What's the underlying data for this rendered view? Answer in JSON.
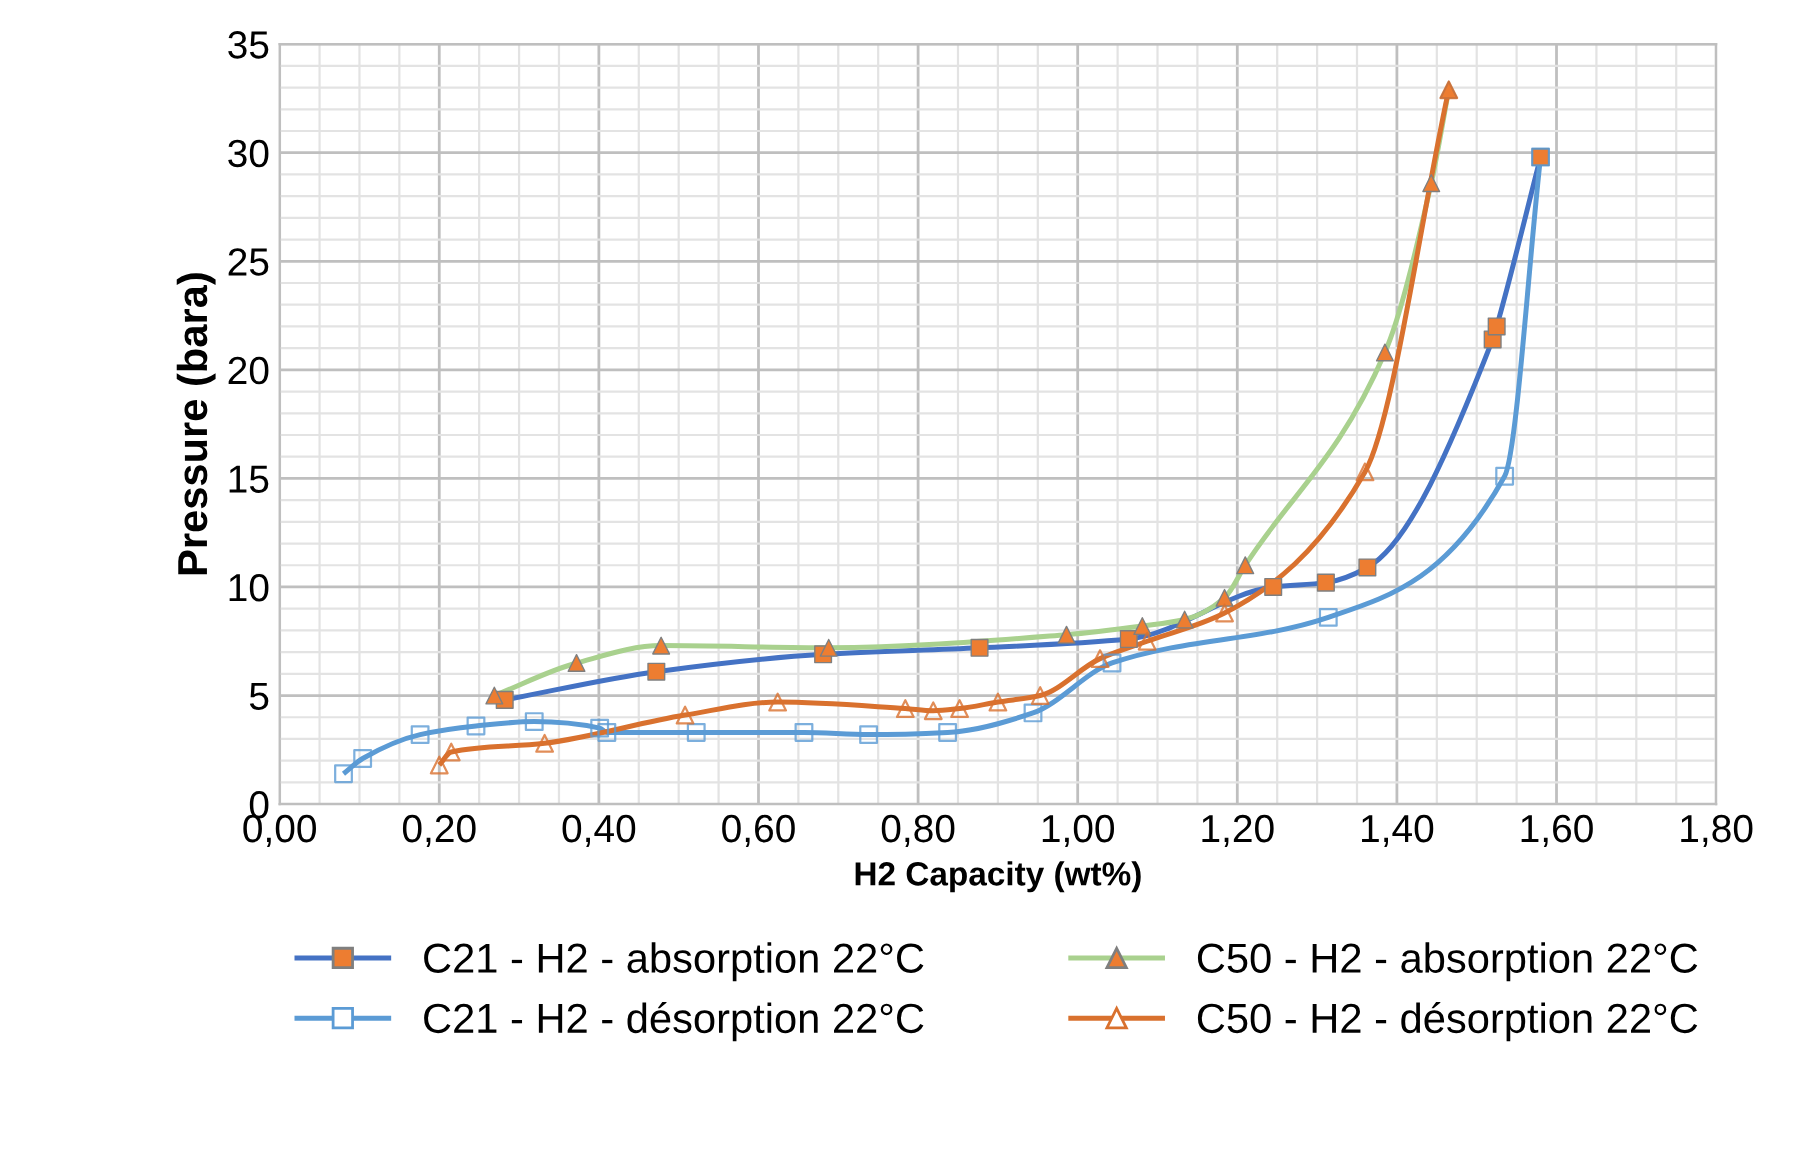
{
  "chart_data": {
    "type": "line",
    "xlabel": "H2 Capacity (wt%)",
    "ylabel": "Pressure (bara)",
    "xlim": [
      0,
      1.8
    ],
    "ylim": [
      0,
      35
    ],
    "xticks": [
      {
        "value": 0,
        "label": "0,00"
      },
      {
        "value": 0.2,
        "label": "0,20"
      },
      {
        "value": 0.4,
        "label": "0,40"
      },
      {
        "value": 0.6,
        "label": "0,60"
      },
      {
        "value": 0.8,
        "label": "0,80"
      },
      {
        "value": 1.0,
        "label": "1,00"
      },
      {
        "value": 1.2,
        "label": "1,20"
      },
      {
        "value": 1.4,
        "label": "1,40"
      },
      {
        "value": 1.6,
        "label": "1,60"
      },
      {
        "value": 1.8,
        "label": "1,80"
      }
    ],
    "yticks": [
      0,
      5,
      10,
      15,
      20,
      25,
      30,
      35
    ],
    "grid": true,
    "legend": "bottom",
    "series": [
      {
        "name": "C21 - H2 - absorption 22°C",
        "color": "#4472c4",
        "marker": "square",
        "x": [
          0.282,
          0.472,
          0.681,
          0.877,
          1.064,
          1.245,
          1.311,
          1.363,
          1.52,
          1.525,
          1.58
        ],
        "values": [
          4.8,
          6.1,
          6.9,
          7.2,
          7.6,
          10.0,
          10.2,
          10.9,
          21.4,
          22.0,
          29.8
        ],
        "colors": [
          "#ed7d31",
          "#ed7d31",
          "#ed7d31",
          "#ed7d31",
          "#ed7d31",
          "#ed7d31",
          "#ed7d31",
          "#ed7d31",
          "#ed7d31",
          "#ed7d31",
          "#ed7d31"
        ]
      },
      {
        "name": "C21 - H2 - désorption 22°C",
        "color": "#5b9bd5",
        "marker": "square",
        "x": [
          0.08,
          0.104,
          0.176,
          0.246,
          0.319,
          0.401,
          0.41,
          0.522,
          0.657,
          0.738,
          0.837,
          0.944,
          1.043,
          1.314,
          1.535,
          1.58
        ],
        "values": [
          1.4,
          2.1,
          3.2,
          3.6,
          3.8,
          3.5,
          3.3,
          3.3,
          3.3,
          3.2,
          3.3,
          4.2,
          6.5,
          8.6,
          15.1,
          29.8
        ]
      },
      {
        "name": "C50 - H2 - absorption 22°C",
        "color": "#a9d18e",
        "marker": "triangle",
        "x": [
          0.269,
          0.372,
          0.478,
          0.688,
          0.986,
          1.081,
          1.134,
          1.184,
          1.21,
          1.385,
          1.443,
          1.465
        ],
        "values": [
          5.0,
          6.5,
          7.3,
          7.2,
          7.8,
          8.2,
          8.5,
          9.5,
          11.0,
          20.8,
          28.6,
          32.9
        ],
        "colors": [
          "#ed7d31",
          "#ed7d31",
          "#ed7d31",
          "#ed7d31",
          "#ed7d31",
          "#ed7d31",
          "#ed7d31",
          "#ed7d31",
          "#ed7d31",
          "#ed7d31",
          "#ed7d31",
          "#ed7d31"
        ]
      },
      {
        "name": "C50 - H2 - désorption 22°C",
        "color": "#d9712e",
        "marker": "triangle",
        "x": [
          0.2,
          0.215,
          0.332,
          0.508,
          0.624,
          0.784,
          0.819,
          0.852,
          0.9,
          0.953,
          1.028,
          1.087,
          1.184,
          1.36,
          1.465
        ],
        "values": [
          1.8,
          2.4,
          2.8,
          4.1,
          4.7,
          4.4,
          4.3,
          4.4,
          4.7,
          5.0,
          6.7,
          7.5,
          8.8,
          15.3,
          32.9
        ]
      }
    ]
  }
}
